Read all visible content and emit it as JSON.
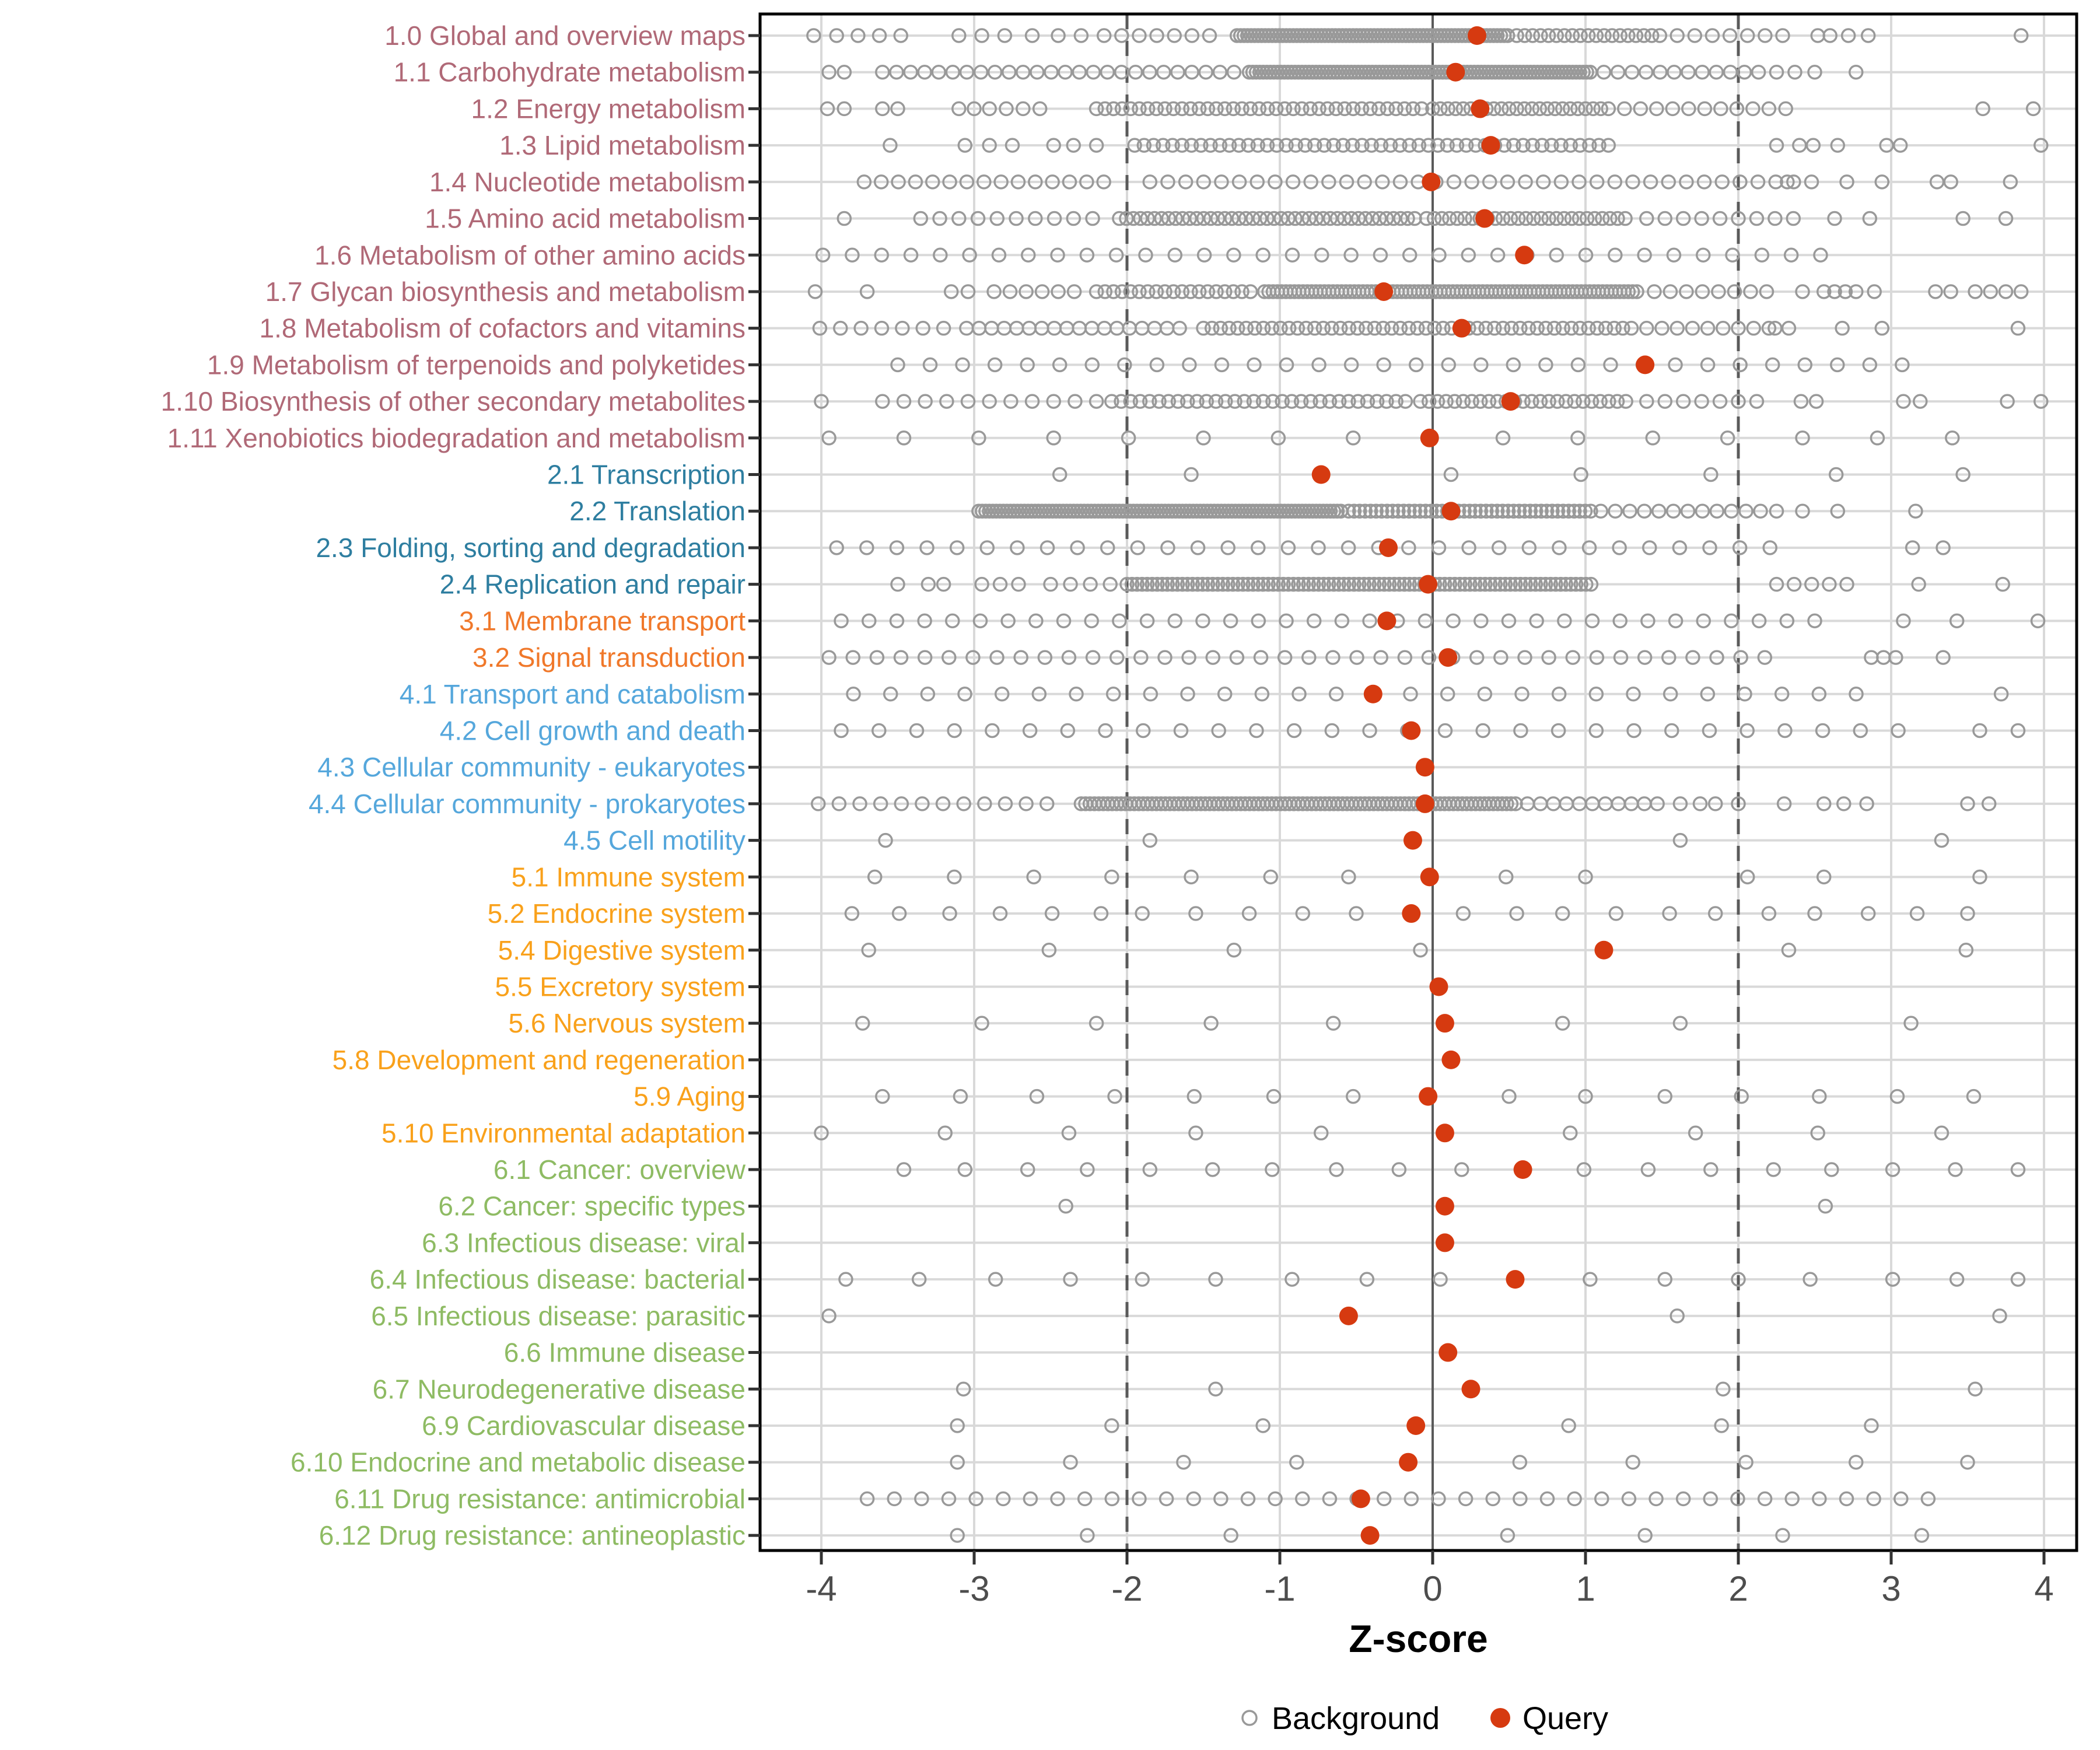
{
  "chart_data": {
    "type": "scatter",
    "title": "",
    "xlabel": "Z-score",
    "xlim": [
      -4.4,
      4.37
    ],
    "x_ticks": [
      -4,
      -3,
      -2,
      -1,
      0,
      1,
      2,
      3,
      4
    ],
    "grid": true,
    "reference_lines": {
      "solid_at": 0,
      "dashed_at": [
        -2,
        2
      ]
    },
    "legend_position": "bottom",
    "legend": [
      {
        "label": "Background",
        "marker": "open-circle",
        "color": "#999999"
      },
      {
        "label": "Query",
        "marker": "filled-circle",
        "color": "#D63A10"
      }
    ],
    "group_colors": {
      "1": "#B06977",
      "2": "#2E7EA0",
      "3": "#F0782A",
      "4": "#55A7DC",
      "5": "#F9A11B",
      "6": "#8EBB63"
    },
    "rows": [
      {
        "label": "1.0 Global and overview maps",
        "group": "1",
        "query": 0.29,
        "bg_points": [
          -4.05,
          -3.9,
          -3.76,
          -3.62,
          -3.48,
          -3.1,
          -2.95,
          -2.8,
          -2.62,
          -2.45,
          -2.3,
          2.52,
          2.6,
          2.72,
          2.85,
          3.85
        ],
        "bg_segments": [
          [
            -2.15,
            -1.35,
            0.115
          ],
          [
            -1.28,
            0.5,
            0.023
          ],
          [
            0.55,
            1.5,
            0.052
          ],
          [
            1.6,
            2.4,
            0.115
          ]
        ]
      },
      {
        "label": "1.1 Carbohydrate metabolism",
        "group": "1",
        "query": 0.15,
        "bg_points": [
          -3.95,
          -3.85,
          2.25,
          2.37,
          2.5,
          2.77
        ],
        "bg_segments": [
          [
            -3.6,
            -1.3,
            0.092
          ],
          [
            -1.2,
            1.05,
            0.023
          ],
          [
            1.12,
            2.2,
            0.092
          ]
        ]
      },
      {
        "label": "1.2 Energy metabolism",
        "group": "1",
        "query": 0.31,
        "bg_points": [
          -3.96,
          -3.85,
          -3.6,
          -3.5,
          -3.1,
          -3.0,
          2.31,
          3.6,
          3.93
        ],
        "bg_segments": [
          [
            -2.9,
            -2.55,
            0.11
          ],
          [
            -2.2,
            -0.05,
            0.056
          ],
          [
            0.0,
            1.1,
            0.05
          ],
          [
            1.15,
            2.3,
            0.105
          ]
        ]
      },
      {
        "label": "1.3 Lipid metabolism",
        "group": "1",
        "query": 0.38,
        "bg_points": [
          -3.55,
          -3.06,
          -2.9,
          -2.75,
          -2.48,
          -2.35,
          -2.2,
          2.25,
          2.4,
          2.49,
          2.65,
          2.97,
          3.06,
          3.98
        ],
        "bg_segments": [
          [
            -1.95,
            1.15,
            0.062
          ]
        ]
      },
      {
        "label": "1.4 Nucleotide metabolism",
        "group": "1",
        "query": -0.01,
        "bg_points": [
          2.32,
          2.71,
          2.94,
          3.3,
          3.39,
          3.78
        ],
        "bg_segments": [
          [
            -3.72,
            -2.15,
            0.112
          ],
          [
            -1.85,
            2.5,
            0.117
          ]
        ]
      },
      {
        "label": "1.5 Amino acid metabolism",
        "group": "1",
        "query": 0.34,
        "bg_points": [
          -3.85,
          2.63,
          2.86,
          3.47,
          3.75
        ],
        "bg_segments": [
          [
            -3.35,
            -2.2,
            0.125
          ],
          [
            -2.05,
            -0.1,
            0.046
          ],
          [
            -0.04,
            1.3,
            0.05
          ],
          [
            1.4,
            2.4,
            0.12
          ]
        ]
      },
      {
        "label": "1.6 Metabolism of other amino acids",
        "group": "1",
        "query": 0.6,
        "bg_points": [],
        "bg_segments": [
          [
            -3.99,
            2.72,
            0.192
          ]
        ]
      },
      {
        "label": "1.7 Glycan biosynthesis and metabolism",
        "group": "1",
        "query": -0.32,
        "bg_points": [
          -4.04,
          -3.7,
          -3.15,
          -3.04,
          2.42,
          2.56,
          2.63,
          2.7,
          2.77,
          2.89,
          3.29,
          3.39,
          3.55,
          3.65,
          3.75,
          3.85
        ],
        "bg_segments": [
          [
            -2.87,
            -2.33,
            0.105
          ],
          [
            -2.2,
            -1.15,
            0.056
          ],
          [
            -1.1,
            1.35,
            0.028
          ],
          [
            1.45,
            2.2,
            0.105
          ]
        ]
      },
      {
        "label": "1.8 Metabolism of cofactors and vitamins",
        "group": "1",
        "query": 0.19,
        "bg_points": [
          2.24,
          2.33,
          2.68,
          2.94,
          3.83
        ],
        "bg_segments": [
          [
            -4.01,
            -3.2,
            0.135
          ],
          [
            -3.05,
            -1.6,
            0.082
          ],
          [
            -1.5,
            1.25,
            0.056
          ],
          [
            1.3,
            2.2,
            0.1
          ]
        ]
      },
      {
        "label": "1.9 Metabolism of terpenoids and polyketides",
        "group": "1",
        "query": 1.39,
        "bg_points": [],
        "bg_segments": [
          [
            -3.5,
            3.08,
            0.212
          ]
        ]
      },
      {
        "label": "1.10 Biosynthesis of other secondary metabolites",
        "group": "1",
        "query": 0.51,
        "bg_points": [
          -4.0,
          2.41,
          2.51,
          3.08,
          3.19,
          3.76,
          3.98
        ],
        "bg_segments": [
          [
            -3.6,
            -2.2,
            0.14
          ],
          [
            -2.1,
            -0.15,
            0.062
          ],
          [
            -0.08,
            1.3,
            0.056
          ],
          [
            1.4,
            2.2,
            0.12
          ]
        ]
      },
      {
        "label": "1.11 Xenobiotics biodegradation and metabolism",
        "group": "1",
        "query": -0.02,
        "bg_points": [],
        "bg_segments": [
          [
            -3.95,
            3.4,
            0.49
          ]
        ]
      },
      {
        "label": "2.1 Transcription",
        "group": "2",
        "query": -0.73,
        "bg_points": [
          -2.44,
          -1.58,
          0.12,
          0.97,
          1.82,
          2.64,
          3.47
        ],
        "bg_segments": []
      },
      {
        "label": "2.2 Translation",
        "group": "2",
        "query": 0.12,
        "bg_points": [
          2.25,
          2.42,
          2.65,
          3.16
        ],
        "bg_segments": [
          [
            -2.97,
            -0.6,
            0.023
          ],
          [
            -0.55,
            1.05,
            0.036
          ],
          [
            1.1,
            2.2,
            0.095
          ]
        ]
      },
      {
        "label": "2.3 Folding, sorting and degradation",
        "group": "2",
        "query": -0.29,
        "bg_points": [
          3.14,
          3.34
        ],
        "bg_segments": [
          [
            -3.9,
            2.31,
            0.197
          ]
        ]
      },
      {
        "label": "2.4 Replication and repair",
        "group": "2",
        "query": -0.03,
        "bg_points": [
          -3.5,
          -3.3,
          -3.2,
          3.18,
          3.73
        ],
        "bg_segments": [
          [
            -2.95,
            -2.6,
            0.12
          ],
          [
            -2.5,
            -2.1,
            0.13
          ],
          [
            -2.0,
            1.05,
            0.033
          ],
          [
            2.25,
            2.72,
            0.115
          ]
        ]
      },
      {
        "label": "3.1 Membrane transport",
        "group": "3",
        "query": -0.3,
        "bg_points": [
          3.08,
          3.43,
          3.96
        ],
        "bg_segments": [
          [
            -3.87,
            2.6,
            0.182
          ]
        ]
      },
      {
        "label": "3.2 Signal transduction",
        "group": "3",
        "query": 0.1,
        "bg_points": [
          2.87,
          2.95,
          3.03,
          3.34
        ],
        "bg_segments": [
          [
            -3.95,
            2.25,
            0.157
          ]
        ]
      },
      {
        "label": "4.1 Transport and catabolism",
        "group": "4",
        "query": -0.39,
        "bg_points": [
          3.72
        ],
        "bg_segments": [
          [
            -3.79,
            3.01,
            0.243
          ]
        ]
      },
      {
        "label": "4.2 Cell growth and death",
        "group": "4",
        "query": -0.14,
        "bg_points": [
          3.58,
          3.83
        ],
        "bg_segments": [
          [
            -3.87,
            3.1,
            0.247
          ]
        ]
      },
      {
        "label": "4.3 Cellular community - eukaryotes",
        "group": "4",
        "query": -0.05,
        "bg_points": [],
        "bg_segments": []
      },
      {
        "label": "4.4 Cellular community - prokaryotes",
        "group": "4",
        "query": -0.05,
        "bg_points": [
          1.62,
          1.75,
          1.85,
          2.0,
          2.3,
          2.56,
          2.69,
          2.84,
          3.5,
          3.64
        ],
        "bg_segments": [
          [
            -4.02,
            -2.4,
            0.136
          ],
          [
            -2.3,
            0.55,
            0.029
          ],
          [
            0.62,
            1.5,
            0.085
          ]
        ]
      },
      {
        "label": "4.5 Cell motility",
        "group": "4",
        "query": -0.13,
        "bg_points": [
          -3.58,
          -1.85,
          1.62,
          3.33
        ],
        "bg_segments": []
      },
      {
        "label": "5.1 Immune system",
        "group": "5",
        "query": -0.02,
        "bg_points": [
          -3.65,
          -3.13,
          -2.61,
          -2.1,
          -1.58,
          -1.06,
          -0.55,
          0.48,
          1.0,
          2.06,
          2.56,
          3.58
        ],
        "bg_segments": []
      },
      {
        "label": "5.2 Endocrine system",
        "group": "5",
        "query": -0.14,
        "bg_points": [
          -3.8,
          -3.49,
          -3.16,
          -2.83,
          -2.49,
          -2.17,
          -1.9,
          -1.55,
          -1.2,
          -0.85,
          -0.5,
          0.2,
          0.55,
          0.85,
          1.2,
          1.55,
          1.85,
          2.2,
          2.5,
          2.85,
          3.17,
          3.5
        ],
        "bg_segments": []
      },
      {
        "label": "5.4 Digestive system",
        "group": "5",
        "query": 1.12,
        "bg_points": [
          -3.69,
          -2.51,
          -1.3,
          -0.08,
          2.33,
          3.49
        ],
        "bg_segments": []
      },
      {
        "label": "5.5 Excretory system",
        "group": "5",
        "query": 0.04,
        "bg_points": [],
        "bg_segments": []
      },
      {
        "label": "5.6 Nervous system",
        "group": "5",
        "query": 0.08,
        "bg_points": [
          -3.73,
          -2.95,
          -2.2,
          -1.45,
          -0.65,
          0.85,
          1.62,
          3.13
        ],
        "bg_segments": []
      },
      {
        "label": "5.8 Development and regeneration",
        "group": "5",
        "query": 0.12,
        "bg_points": [],
        "bg_segments": []
      },
      {
        "label": "5.9 Aging",
        "group": "5",
        "query": -0.03,
        "bg_points": [
          -3.6,
          -3.09,
          -2.59,
          -2.08,
          -1.56,
          -1.04,
          -0.52,
          0.5,
          1.0,
          1.52,
          2.02,
          2.53,
          3.04,
          3.54
        ],
        "bg_segments": []
      },
      {
        "label": "5.10 Environmental adaptation",
        "group": "5",
        "query": 0.08,
        "bg_points": [
          -4.0,
          -3.19,
          -2.38,
          -1.55,
          -0.73,
          0.9,
          1.72,
          2.52,
          3.33
        ],
        "bg_segments": []
      },
      {
        "label": "6.1 Cancer: overview",
        "group": "6",
        "query": 0.59,
        "bg_points": [
          -3.46,
          -3.06,
          -2.65,
          -2.26,
          -1.85,
          -1.44,
          -1.05,
          -0.63,
          -0.22,
          0.19,
          0.99,
          1.41,
          1.82,
          2.23,
          2.61,
          3.01,
          3.42,
          3.83
        ],
        "bg_segments": []
      },
      {
        "label": "6.2 Cancer: specific types",
        "group": "6",
        "query": 0.08,
        "bg_points": [
          -2.4,
          2.57
        ],
        "bg_segments": []
      },
      {
        "label": "6.3 Infectious disease: viral",
        "group": "6",
        "query": 0.08,
        "bg_points": [],
        "bg_segments": []
      },
      {
        "label": "6.4 Infectious disease: bacterial",
        "group": "6",
        "query": 0.54,
        "bg_points": [
          -3.84,
          -3.36,
          -2.86,
          -2.37,
          -1.9,
          -1.42,
          -0.92,
          -0.43,
          0.05,
          1.03,
          1.52,
          2.0,
          2.47,
          3.01,
          3.43,
          3.83
        ],
        "bg_segments": []
      },
      {
        "label": "6.5 Infectious disease: parasitic",
        "group": "6",
        "query": -0.55,
        "bg_points": [
          -3.95,
          1.6,
          3.71
        ],
        "bg_segments": []
      },
      {
        "label": "6.6 Immune disease",
        "group": "6",
        "query": 0.1,
        "bg_points": [],
        "bg_segments": []
      },
      {
        "label": "6.7 Neurodegenerative disease",
        "group": "6",
        "query": 0.25,
        "bg_points": [
          -3.07,
          -1.42,
          1.9,
          3.55
        ],
        "bg_segments": []
      },
      {
        "label": "6.9 Cardiovascular disease",
        "group": "6",
        "query": -0.11,
        "bg_points": [
          -3.11,
          -2.1,
          -1.11,
          0.89,
          1.89,
          2.87
        ],
        "bg_segments": []
      },
      {
        "label": "6.10 Endocrine and metabolic disease",
        "group": "6",
        "query": -0.16,
        "bg_points": [
          -3.11,
          -2.37,
          -1.63,
          -0.89,
          0.57,
          1.31,
          2.05,
          2.77,
          3.5
        ],
        "bg_segments": []
      },
      {
        "label": "6.11 Drug resistance: antimicrobial",
        "group": "6",
        "query": -0.47,
        "bg_points": [],
        "bg_segments": [
          [
            -3.7,
            3.4,
            0.178
          ]
        ]
      },
      {
        "label": "6.12 Drug resistance: antineoplastic",
        "group": "6",
        "query": -0.41,
        "bg_points": [
          -3.11,
          -2.26,
          -1.32,
          0.49,
          1.39,
          2.29,
          3.2
        ],
        "bg_segments": []
      }
    ]
  },
  "style": {
    "panel_border_color": "#000000",
    "grid_color": "#D9D9D9",
    "zero_line_color": "#5A5A5A",
    "dashed_line_color": "#5A5A5A",
    "tick_color": "#333333",
    "tick_label_color": "#4D4D4D",
    "axis_title_color": "#000000",
    "legend_text_color": "#000000",
    "bg_marker_color": "#999999",
    "query_marker_color": "#D63A10",
    "plot_background": "#FFFFFF"
  }
}
